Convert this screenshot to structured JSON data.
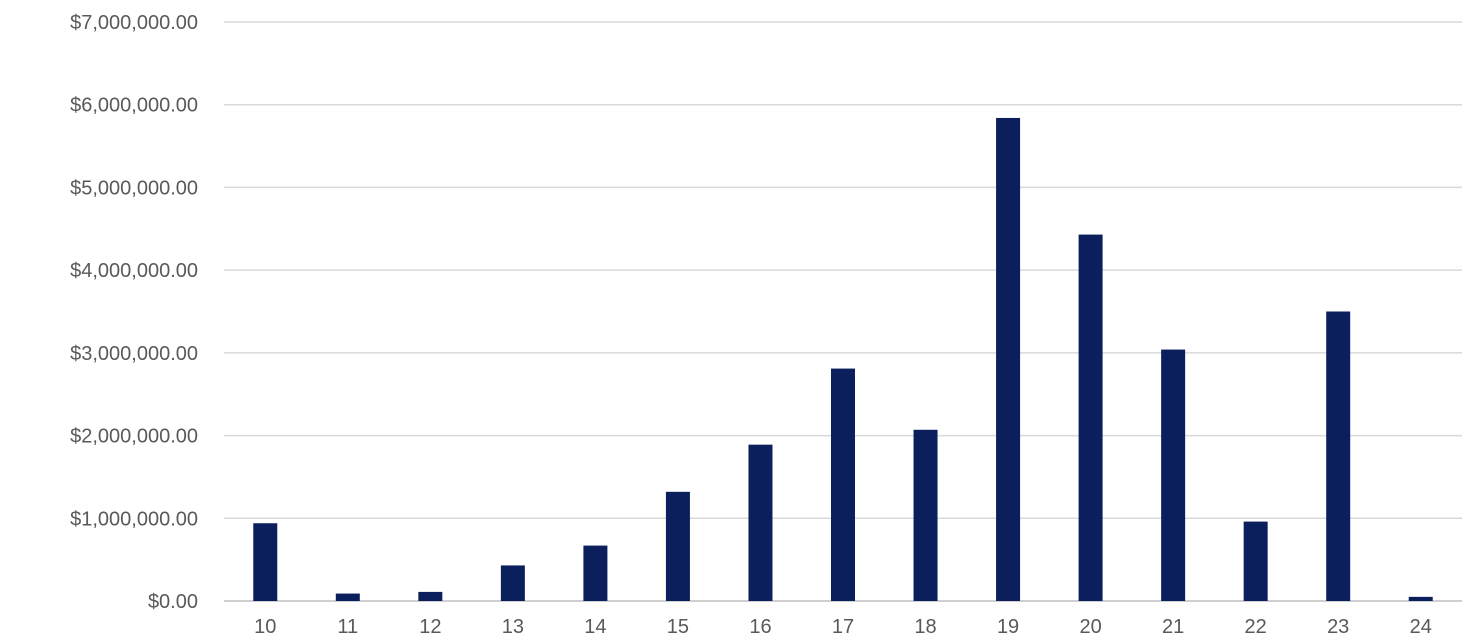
{
  "chart_data": {
    "type": "bar",
    "title": "",
    "xlabel": "",
    "ylabel": "",
    "categories": [
      "10",
      "11",
      "12",
      "13",
      "14",
      "15",
      "16",
      "17",
      "18",
      "19",
      "20",
      "21",
      "22",
      "23",
      "24"
    ],
    "values": [
      940000,
      90000,
      110000,
      430000,
      670000,
      1320000,
      1890000,
      2810000,
      2070000,
      5840000,
      4430000,
      3040000,
      960000,
      3500000,
      50000
    ],
    "ylim": [
      0,
      7000000
    ],
    "y_ticks": [
      0,
      1000000,
      2000000,
      3000000,
      4000000,
      5000000,
      6000000,
      7000000
    ],
    "y_tick_labels": [
      "$0.00",
      "$1,000,000.00",
      "$2,000,000.00",
      "$3,000,000.00",
      "$4,000,000.00",
      "$5,000,000.00",
      "$6,000,000.00",
      "$7,000,000.00"
    ],
    "grid": true,
    "legend": "none",
    "colors": {
      "bar": "#0a1f5c",
      "grid": "#d9d9d9",
      "text": "#595959"
    }
  }
}
